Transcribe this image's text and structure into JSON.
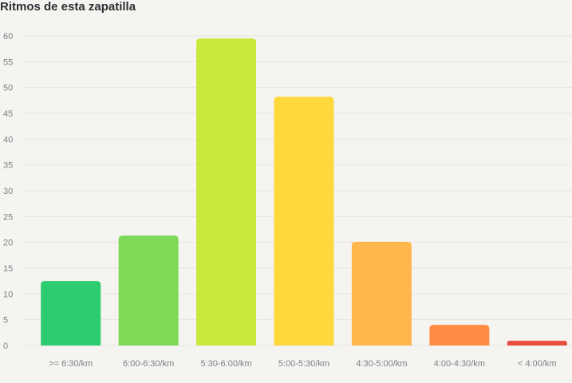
{
  "chart_data": {
    "type": "bar",
    "title": "Ritmos de esta zapatilla",
    "xlabel": "",
    "ylabel": "",
    "ylim": [
      0,
      60
    ],
    "yticks": [
      0,
      5,
      10,
      15,
      20,
      25,
      30,
      35,
      40,
      45,
      50,
      55,
      60
    ],
    "grid": true,
    "legend": "none",
    "categories": [
      ">= 6:30/km",
      "6:00-6:30/km",
      "5:30-6:00/km",
      "5:00-5:30/km",
      "4:30-5:00/km",
      "4:00-4:30/km",
      "< 4:00/km"
    ],
    "values": [
      12.5,
      21.3,
      59.5,
      48.2,
      20.1,
      4.0,
      0.9
    ],
    "colors": [
      "#2ecc71",
      "#7ed957",
      "#c8e83c",
      "#ffd83c",
      "#ffb74d",
      "#ff8c42",
      "#e74c3c"
    ]
  }
}
